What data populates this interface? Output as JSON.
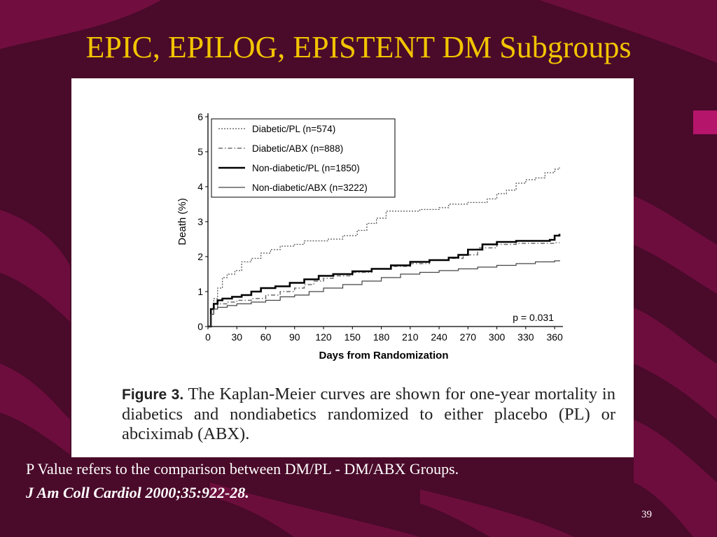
{
  "slide": {
    "title": "EPIC, EPILOG, EPISTENT DM Subgroups",
    "note": "P Value refers to the comparison between DM/PL - DM/ABX Groups.",
    "citation": "J Am Coll Cardiol 2000;35:922-28.",
    "page_number": "39",
    "colors": {
      "background": "#4a0a2a",
      "title": "#f2c400",
      "stripe": "#7a0f45"
    }
  },
  "figure": {
    "caption_label": "Figure 3.",
    "caption_text": "The Kaplan-Meier curves are shown for one-year mortality in diabetics and nondiabetics randomized to either placebo (PL) or abciximab (ABX)."
  },
  "chart_data": {
    "type": "line",
    "xlabel": "Days from Randomization",
    "ylabel": "Death (%)",
    "xlim": [
      0,
      365
    ],
    "ylim": [
      0,
      6
    ],
    "xticks": [
      0,
      30,
      60,
      90,
      120,
      150,
      180,
      210,
      240,
      270,
      300,
      330,
      360
    ],
    "yticks": [
      0,
      1,
      2,
      3,
      4,
      5,
      6
    ],
    "legend_position": "top-left",
    "annotation": "p = 0.031",
    "series": [
      {
        "name": "Diabetic/PL (n=574)",
        "style": "dotted",
        "color": "#555555",
        "x": [
          0,
          3,
          6,
          10,
          15,
          20,
          28,
          35,
          45,
          55,
          65,
          75,
          90,
          100,
          110,
          125,
          140,
          155,
          165,
          175,
          185,
          200,
          220,
          240,
          250,
          270,
          290,
          300,
          310,
          320,
          330,
          340,
          350,
          360,
          365
        ],
        "y": [
          0,
          0.5,
          0.8,
          1.1,
          1.4,
          1.5,
          1.6,
          1.85,
          1.95,
          2.1,
          2.2,
          2.3,
          2.35,
          2.45,
          2.45,
          2.5,
          2.6,
          2.75,
          2.95,
          3.1,
          3.3,
          3.3,
          3.35,
          3.4,
          3.5,
          3.55,
          3.65,
          3.8,
          3.9,
          4.1,
          4.2,
          4.25,
          4.4,
          4.5,
          4.55
        ]
      },
      {
        "name": "Diabetic/ABX (n=888)",
        "style": "dashdot",
        "color": "#777777",
        "x": [
          0,
          3,
          6,
          10,
          20,
          30,
          45,
          60,
          75,
          90,
          100,
          110,
          120,
          130,
          150,
          170,
          190,
          210,
          230,
          250,
          265,
          280,
          300,
          320,
          340,
          360,
          365
        ],
        "y": [
          0,
          0.35,
          0.55,
          0.65,
          0.7,
          0.75,
          0.8,
          0.9,
          1.0,
          1.1,
          1.2,
          1.3,
          1.38,
          1.45,
          1.55,
          1.65,
          1.72,
          1.8,
          1.9,
          1.95,
          2.05,
          2.25,
          2.35,
          2.38,
          2.38,
          2.4,
          2.4
        ]
      },
      {
        "name": "Non-diabetic/PL (n=1850)",
        "style": "thick",
        "color": "#000000",
        "x": [
          0,
          3,
          6,
          10,
          15,
          25,
          35,
          45,
          55,
          70,
          85,
          100,
          115,
          130,
          150,
          170,
          190,
          210,
          230,
          250,
          260,
          270,
          285,
          300,
          320,
          340,
          355,
          360,
          365
        ],
        "y": [
          0,
          0.5,
          0.65,
          0.75,
          0.8,
          0.85,
          0.9,
          1.0,
          1.1,
          1.15,
          1.25,
          1.35,
          1.45,
          1.5,
          1.58,
          1.65,
          1.75,
          1.85,
          1.9,
          1.97,
          2.05,
          2.2,
          2.35,
          2.42,
          2.45,
          2.45,
          2.48,
          2.6,
          2.65
        ]
      },
      {
        "name": "Non-diabetic/ABX (n=3222)",
        "style": "thin",
        "color": "#444444",
        "x": [
          0,
          3,
          6,
          10,
          20,
          30,
          45,
          60,
          75,
          90,
          105,
          120,
          140,
          160,
          180,
          200,
          220,
          240,
          260,
          280,
          300,
          320,
          340,
          360,
          365
        ],
        "y": [
          0,
          0.35,
          0.5,
          0.55,
          0.6,
          0.65,
          0.7,
          0.75,
          0.85,
          0.9,
          1.0,
          1.1,
          1.2,
          1.3,
          1.4,
          1.5,
          1.55,
          1.6,
          1.65,
          1.7,
          1.75,
          1.8,
          1.85,
          1.88,
          1.9
        ]
      }
    ]
  }
}
